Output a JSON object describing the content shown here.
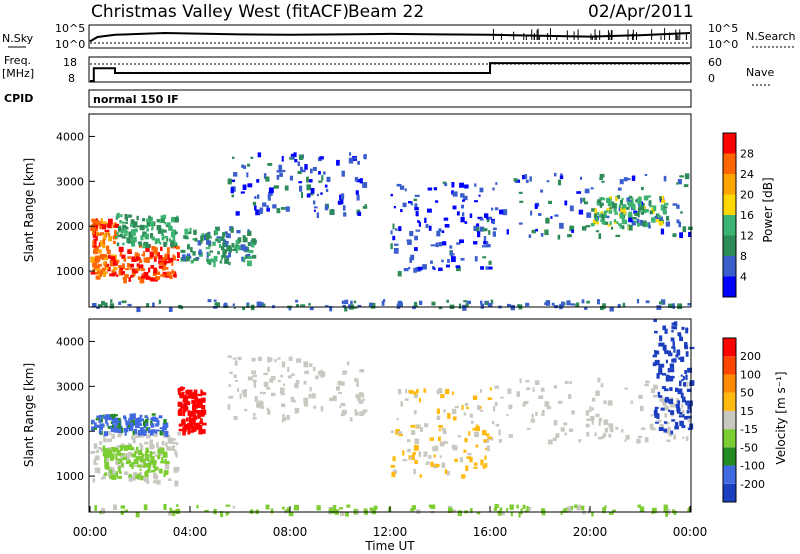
{
  "header": {
    "title": "Christmas Valley West (fitACF)",
    "beam": "Beam 22",
    "date": "02/Apr/2011"
  },
  "panels": {
    "nsky": {
      "label": "N.Sky",
      "right_label": "N.Search",
      "ticks_left": [
        "10^5",
        "10^0"
      ],
      "ticks_right": [
        "10^5",
        "10^0"
      ]
    },
    "freq": {
      "label_line1": "Freq.",
      "label_line2": "[MHz]",
      "right_label": "Nave",
      "ticks_left": [
        "18",
        "8"
      ],
      "ticks_right": [
        "60",
        "0"
      ]
    },
    "cpid": {
      "label": "CPID",
      "value": "normal 150 IF"
    }
  },
  "colors": {
    "power": [
      "#0000ff",
      "#3a5fcd",
      "#2e8b57",
      "#3cb371",
      "#ffd700",
      "#ffa500",
      "#ff6600",
      "#ff0000"
    ],
    "velocity": [
      "#1c3fbf",
      "#4169e1",
      "#228b22",
      "#7ccd32",
      "#c8c8c0",
      "#ffb90f",
      "#ff8c00",
      "#ff4500",
      "#ff0000"
    ]
  },
  "chart_data": [
    {
      "type": "heatmap",
      "name": "power",
      "ylabel": "Slant Range [km]",
      "yticks": [
        "4000",
        "3000",
        "2000",
        "1000"
      ],
      "ylim": [
        200,
        4500
      ],
      "xlim": [
        0,
        24
      ],
      "colorbar_label": "Power [dB]",
      "colorbar_ticks": [
        "28",
        "24",
        "20",
        "16",
        "12",
        "8",
        "4"
      ],
      "colorbar_range": [
        0,
        32
      ],
      "regions": [
        {
          "t0": 0.0,
          "t1": 1.0,
          "r0": 900,
          "r1": 2200,
          "v": 26
        },
        {
          "t0": 1.0,
          "t1": 3.5,
          "r0": 850,
          "r1": 1600,
          "v": 28
        },
        {
          "t0": 1.0,
          "t1": 3.5,
          "r0": 1600,
          "r1": 2300,
          "v": 12
        },
        {
          "t0": 3.5,
          "t1": 6.5,
          "r0": 1200,
          "r1": 2000,
          "v": 10
        },
        {
          "t0": 5.5,
          "t1": 11.0,
          "r0": 2300,
          "r1": 3700,
          "v": 6
        },
        {
          "t0": 12.0,
          "t1": 16.0,
          "r0": 1000,
          "r1": 3000,
          "v": 5
        },
        {
          "t0": 16.0,
          "t1": 24.0,
          "r0": 1800,
          "r1": 3200,
          "v": 6
        },
        {
          "t0": 20.0,
          "t1": 23.0,
          "r0": 2000,
          "r1": 2700,
          "v": 14
        },
        {
          "t0": 0.0,
          "t1": 24.0,
          "r0": 200,
          "r1": 380,
          "v": 8
        }
      ]
    },
    {
      "type": "heatmap",
      "name": "velocity",
      "ylabel": "Slant Range [km]",
      "yticks": [
        "4000",
        "3000",
        "2000",
        "1000"
      ],
      "ylim": [
        200,
        4500
      ],
      "xlim": [
        0,
        24
      ],
      "xlabel": "Time UT",
      "xticks": [
        "00:00",
        "04:00",
        "08:00",
        "12:00",
        "16:00",
        "20:00",
        "00:00"
      ],
      "colorbar_label": "Velocity [m s⁻¹]",
      "colorbar_ticks": [
        "200",
        "100",
        "50",
        "15",
        "-15",
        "-50",
        "-100",
        "-200"
      ],
      "colorbar_range": [
        -250,
        250
      ],
      "regions": [
        {
          "t0": 0.0,
          "t1": 3.5,
          "r0": 900,
          "r1": 2000,
          "v": -5
        },
        {
          "t0": 0.5,
          "t1": 3.0,
          "r0": 1000,
          "r1": 1700,
          "v": -60
        },
        {
          "t0": 0.0,
          "t1": 3.0,
          "r0": 2000,
          "r1": 2400,
          "v": -150
        },
        {
          "t0": 3.5,
          "t1": 4.5,
          "r0": 2000,
          "r1": 3000,
          "v": 220
        },
        {
          "t0": 5.5,
          "t1": 11.0,
          "r0": 2300,
          "r1": 3700,
          "v": -5
        },
        {
          "t0": 12.0,
          "t1": 16.0,
          "r0": 1000,
          "r1": 3000,
          "v": 30
        },
        {
          "t0": 16.0,
          "t1": 24.0,
          "r0": 1800,
          "r1": 3200,
          "v": 0
        },
        {
          "t0": 22.5,
          "t1": 24.0,
          "r0": 2000,
          "r1": 4500,
          "v": -220
        },
        {
          "t0": 0.0,
          "t1": 24.0,
          "r0": 200,
          "r1": 380,
          "v": -40
        }
      ]
    },
    {
      "type": "line",
      "name": "nsky",
      "x": [
        0,
        0.3,
        1,
        2,
        3,
        4,
        6,
        8,
        10,
        12,
        14,
        16,
        18,
        20,
        22,
        24
      ],
      "y": [
        1.5,
        2.5,
        3.0,
        3.2,
        3.4,
        3.3,
        3.1,
        3.0,
        3.1,
        3.2,
        3.1,
        3.0,
        2.8,
        2.6,
        2.9,
        3.4
      ],
      "ylim": [
        0,
        5
      ]
    },
    {
      "type": "line",
      "name": "freq",
      "x": [
        0,
        0.15,
        0.15,
        1.0,
        1.0,
        16.0,
        16.0,
        24.0
      ],
      "y": [
        8,
        8,
        13.5,
        13.5,
        11.5,
        11.5,
        15.8,
        15.8
      ],
      "ylim": [
        8,
        18
      ]
    }
  ]
}
